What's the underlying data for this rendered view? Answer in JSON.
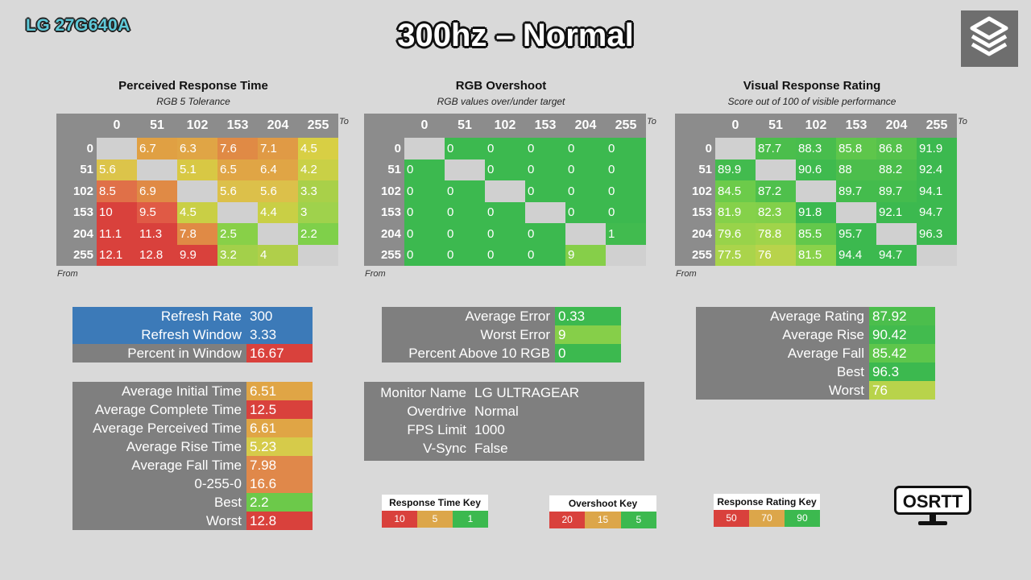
{
  "header": {
    "model": "LG 27G640A",
    "title": "300hz – Normal"
  },
  "colors": {
    "red": "#d9413c",
    "orange": "#e0884a",
    "amber": "#dca64a",
    "yellow": "#d6cb4a",
    "yellowgreen": "#b5cf4d",
    "lightgreen": "#8fd24a",
    "green": "#3cb94f",
    "blue": "#3c7ab8",
    "gray": "#7f7f7f"
  },
  "axis_labels": {
    "to": "To",
    "from": "From"
  },
  "perceived": {
    "title": "Perceived Response Time",
    "subtitle": "RGB 5 Tolerance",
    "headers": [
      "0",
      "51",
      "102",
      "153",
      "204",
      "255"
    ],
    "rows": [
      [
        "",
        "6.7",
        "6.3",
        "7.6",
        "7.1",
        "4.5"
      ],
      [
        "5.6",
        "",
        "5.1",
        "6.5",
        "6.4",
        "4.2"
      ],
      [
        "8.5",
        "6.9",
        "",
        "5.6",
        "5.6",
        "3.3"
      ],
      [
        "10",
        "9.5",
        "4.5",
        "",
        "4.4",
        "3"
      ],
      [
        "11.1",
        "11.3",
        "7.8",
        "2.5",
        "",
        "2.2"
      ],
      [
        "12.1",
        "12.8",
        "9.9",
        "3.2",
        "4",
        ""
      ]
    ],
    "colors": [
      [
        "",
        "#e0a043",
        "#e0a545",
        "#e08a45",
        "#e09a45",
        "#d8cf44"
      ],
      [
        "#dcc44a",
        "",
        "#d8c844",
        "#e0a545",
        "#e0a545",
        "#c9d046"
      ],
      [
        "#e07048",
        "#e08a45",
        "",
        "#dcc04a",
        "#dcc04a",
        "#a9d049"
      ],
      [
        "#d9413c",
        "#e05a45",
        "#c9cf45",
        "",
        "#c9cf45",
        "#9fd24c"
      ],
      [
        "#d9413c",
        "#d9413c",
        "#e08a45",
        "#88d048",
        "",
        "#7fd04a"
      ],
      [
        "#d9413c",
        "#d9413c",
        "#d9413c",
        "#a3d04a",
        "#b0cf4a",
        ""
      ]
    ]
  },
  "overshoot": {
    "title": "RGB Overshoot",
    "subtitle": "RGB values over/under target",
    "headers": [
      "0",
      "51",
      "102",
      "153",
      "204",
      "255"
    ],
    "rows": [
      [
        "",
        "0",
        "0",
        "0",
        "0",
        "0"
      ],
      [
        "0",
        "",
        "0",
        "0",
        "0",
        "0"
      ],
      [
        "0",
        "0",
        "",
        "0",
        "0",
        "0"
      ],
      [
        "0",
        "0",
        "0",
        "",
        "0",
        "0"
      ],
      [
        "0",
        "0",
        "0",
        "0",
        "",
        "1"
      ],
      [
        "0",
        "0",
        "0",
        "0",
        "9",
        ""
      ]
    ],
    "colors": [
      [
        "",
        "#3cb94f",
        "#3cb94f",
        "#3cb94f",
        "#3cb94f",
        "#3cb94f"
      ],
      [
        "#3cb94f",
        "",
        "#3cb94f",
        "#3cb94f",
        "#3cb94f",
        "#3cb94f"
      ],
      [
        "#3cb94f",
        "#3cb94f",
        "",
        "#3cb94f",
        "#3cb94f",
        "#3cb94f"
      ],
      [
        "#3cb94f",
        "#3cb94f",
        "#3cb94f",
        "",
        "#3cb94f",
        "#3cb94f"
      ],
      [
        "#3cb94f",
        "#3cb94f",
        "#3cb94f",
        "#3cb94f",
        "",
        "#41bb4f"
      ],
      [
        "#3cb94f",
        "#3cb94f",
        "#3cb94f",
        "#3cb94f",
        "#86cf49",
        ""
      ]
    ]
  },
  "visual": {
    "title": "Visual Response Rating",
    "subtitle": "Score out of 100 of visible performance",
    "headers": [
      "0",
      "51",
      "102",
      "153",
      "204",
      "255"
    ],
    "rows": [
      [
        "",
        "87.7",
        "88.3",
        "85.8",
        "86.8",
        "91.9"
      ],
      [
        "89.9",
        "",
        "90.6",
        "88",
        "88.2",
        "92.4"
      ],
      [
        "84.5",
        "87.2",
        "",
        "89.7",
        "89.7",
        "94.1"
      ],
      [
        "81.9",
        "82.3",
        "91.8",
        "",
        "92.1",
        "94.7"
      ],
      [
        "79.6",
        "78.8",
        "85.5",
        "95.7",
        "",
        "96.3"
      ],
      [
        "77.5",
        "76",
        "81.5",
        "94.4",
        "94.7",
        ""
      ]
    ],
    "colors": [
      [
        "",
        "#4bbe4c",
        "#48bd4d",
        "#5ec64b",
        "#55c24c",
        "#3cb94f"
      ],
      [
        "#42bb4e",
        "",
        "#3fba4e",
        "#4cbe4c",
        "#4bbe4c",
        "#3cb94f"
      ],
      [
        "#6ccb4a",
        "#4fc04c",
        "",
        "#44bc4d",
        "#44bc4d",
        "#3cb94f"
      ],
      [
        "#85d14a",
        "#82d04a",
        "#3cb94f",
        "",
        "#3cb94f",
        "#3cb94f"
      ],
      [
        "#98d34a",
        "#a0d44a",
        "#63c84b",
        "#3cb94f",
        "",
        "#3cb94f"
      ],
      [
        "#aad44b",
        "#b8d34b",
        "#8ad24a",
        "#3cb94f",
        "#3cb94f",
        ""
      ]
    ]
  },
  "refresh_table": [
    {
      "label": "Refresh Rate",
      "value": "300",
      "bg": "#3c7ab8",
      "vbg": "#3c7ab8"
    },
    {
      "label": "Refresh Window",
      "value": "3.33",
      "bg": "#3c7ab8",
      "vbg": "#3c7ab8"
    },
    {
      "label": "Percent in Window",
      "value": "16.67",
      "bg": "#7f7f7f",
      "vbg": "#d9413c"
    }
  ],
  "stats_table": [
    {
      "label": "Average Initial Time",
      "value": "6.51",
      "vbg": "#e0a545"
    },
    {
      "label": "Average Complete Time",
      "value": "12.5",
      "vbg": "#d9413c"
    },
    {
      "label": "Average Perceived Time",
      "value": "6.61",
      "vbg": "#e0a545"
    },
    {
      "label": "Average Rise Time",
      "value": "5.23",
      "vbg": "#d6cb4a"
    },
    {
      "label": "Average Fall Time",
      "value": "7.98",
      "vbg": "#e0884a"
    },
    {
      "label": "0-255-0",
      "value": "16.6",
      "vbg": "#e0884a"
    },
    {
      "label": "Best",
      "value": "2.2",
      "vbg": "#6cc94a"
    },
    {
      "label": "Worst",
      "value": "12.8",
      "vbg": "#d9413c"
    }
  ],
  "overshoot_table": [
    {
      "label": "Average Error",
      "value": "0.33",
      "vbg": "#3cb94f"
    },
    {
      "label": "Worst Error",
      "value": "9",
      "vbg": "#86cf49"
    },
    {
      "label": "Percent Above 10 RGB",
      "value": "0",
      "vbg": "#3cb94f"
    }
  ],
  "monitor_table": [
    {
      "label": "Monitor Name",
      "value": "LG ULTRAGEAR"
    },
    {
      "label": "Overdrive",
      "value": "Normal"
    },
    {
      "label": "FPS Limit",
      "value": "1000"
    },
    {
      "label": "V-Sync",
      "value": "False"
    }
  ],
  "rating_table": [
    {
      "label": "Average Rating",
      "value": "87.92",
      "vbg": "#4bbe4c"
    },
    {
      "label": "Average Rise",
      "value": "90.42",
      "vbg": "#42bb4e"
    },
    {
      "label": "Average Fall",
      "value": "85.42",
      "vbg": "#5ec64b"
    },
    {
      "label": "Best",
      "value": "96.3",
      "vbg": "#3cb94f"
    },
    {
      "label": "Worst",
      "value": "76",
      "vbg": "#b8d34b"
    }
  ],
  "keys": {
    "response": {
      "title": "Response Time Key",
      "values": [
        "10",
        "5",
        "1"
      ],
      "colors": [
        "#d9413c",
        "#dca64a",
        "#3cb94f"
      ]
    },
    "overshoot": {
      "title": "Overshoot Key",
      "values": [
        "20",
        "15",
        "5"
      ],
      "colors": [
        "#d9413c",
        "#dca64a",
        "#3cb94f"
      ]
    },
    "rating": {
      "title": "Response Rating Key",
      "values": [
        "50",
        "70",
        "90"
      ],
      "colors": [
        "#d9413c",
        "#dca64a",
        "#3cb94f"
      ]
    }
  },
  "brand": {
    "logo_text": "OSRTT",
    "logo_icon": "monitor-icon",
    "corner_icon": "stack-logo-icon"
  }
}
